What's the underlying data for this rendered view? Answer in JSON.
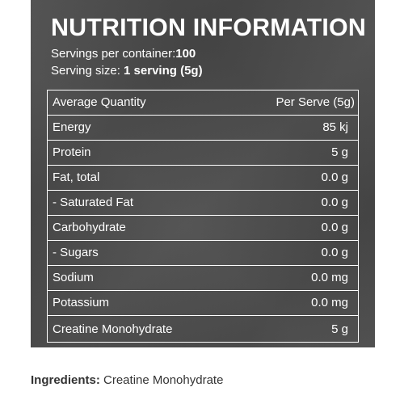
{
  "panel": {
    "title": "NUTRITION INFORMATION",
    "servings_per_container_label": "Servings per container:",
    "servings_per_container_value": "100",
    "serving_size_label": "Serving size:",
    "serving_size_value": "1 serving (5g)"
  },
  "table": {
    "header": {
      "name": "Average Quantity",
      "value": "Per Serve (5g)"
    },
    "rows": [
      {
        "name": "Energy",
        "value": "85 kj"
      },
      {
        "name": "Protein",
        "value": "5 g"
      },
      {
        "name": "Fat, total",
        "value": "0.0 g"
      },
      {
        "name": "- Saturated Fat",
        "value": "0.0 g"
      },
      {
        "name": "Carbohydrate",
        "value": "0.0 g"
      },
      {
        "name": "- Sugars",
        "value": "0.0 g"
      },
      {
        "name": "Sodium",
        "value": "0.0 mg"
      },
      {
        "name": "Potassium",
        "value": "0.0 mg"
      },
      {
        "name": "Creatine Monohydrate",
        "value": "5 g"
      }
    ]
  },
  "ingredients": {
    "label": "Ingredients:",
    "value": "Creatine Monohydrate"
  },
  "colors": {
    "panel_background": "#4a4a4a",
    "text_on_panel": "#ffffff",
    "ingredients_text": "#333333"
  }
}
